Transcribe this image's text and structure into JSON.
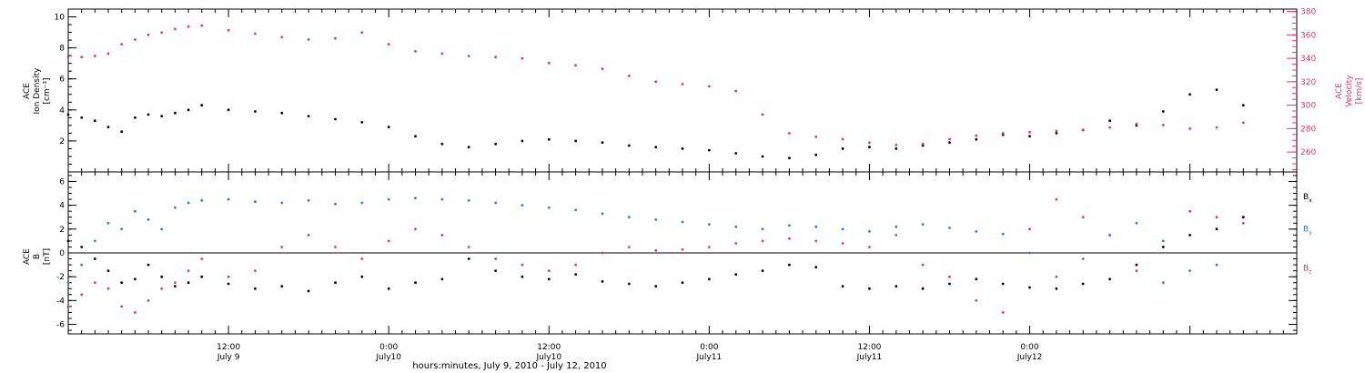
{
  "colors": {
    "axis": "#000000",
    "black": "#000000",
    "pink": "#e8336b",
    "blue": "#1e7fe8"
  },
  "chart_data": [
    {
      "type": "scatter",
      "panel": "top",
      "ylabel_lines": [
        "ACE",
        "Ion Density",
        "[cm⁻³]"
      ],
      "ylim": [
        0,
        10.5
      ],
      "yticks": [
        2,
        4,
        6,
        8,
        10
      ],
      "y2label_lines": [
        "ACE",
        "Velocity",
        "[km/s]"
      ],
      "y2lim": [
        243,
        382
      ],
      "y2ticks": [
        260,
        280,
        300,
        320,
        340,
        360,
        380
      ],
      "y2_color": "#e8336b",
      "series": [
        {
          "role": "Ion Density",
          "axis": "left",
          "color": "#000000",
          "x": [
            0,
            1,
            2,
            3,
            4,
            5,
            6,
            7,
            8,
            9,
            10,
            12,
            14,
            16,
            18,
            20,
            22,
            24,
            26,
            28,
            30,
            32,
            34,
            36,
            38,
            40,
            42,
            44,
            46,
            48,
            50,
            52,
            54,
            56,
            58,
            60,
            62,
            64,
            66,
            68,
            70,
            72,
            74,
            76,
            78,
            80,
            82,
            84,
            86,
            88
          ],
          "y": [
            3.7,
            3.5,
            3.3,
            2.9,
            2.6,
            3.5,
            3.7,
            3.6,
            3.8,
            4.0,
            4.3,
            4.0,
            3.9,
            3.8,
            3.6,
            3.4,
            3.2,
            2.9,
            2.3,
            1.8,
            1.6,
            1.8,
            2.0,
            2.1,
            2.0,
            1.9,
            1.7,
            1.6,
            1.5,
            1.4,
            1.2,
            1.0,
            0.9,
            1.1,
            1.5,
            1.6,
            1.5,
            1.7,
            1.9,
            2.1,
            2.4,
            2.3,
            2.5,
            2.7,
            3.3,
            3.0,
            3.9,
            5.0,
            5.3,
            4.3
          ]
        },
        {
          "role": "Velocity",
          "axis": "right",
          "color": "#e8336b",
          "x": [
            0,
            1,
            2,
            3,
            4,
            5,
            6,
            7,
            8,
            9,
            10,
            12,
            14,
            16,
            18,
            20,
            22,
            24,
            26,
            28,
            30,
            32,
            34,
            36,
            38,
            40,
            42,
            44,
            46,
            48,
            50,
            52,
            54,
            56,
            58,
            60,
            62,
            64,
            66,
            68,
            70,
            72,
            74,
            76,
            78,
            80,
            82,
            84,
            86,
            88
          ],
          "y": [
            341,
            341,
            342,
            344,
            352,
            356,
            360,
            362,
            365,
            367,
            368,
            364,
            361,
            358,
            356,
            357,
            362,
            352,
            346,
            344,
            342,
            341,
            340,
            336,
            334,
            331,
            325,
            320,
            318,
            316,
            312,
            292,
            276,
            273,
            271,
            268,
            266,
            267,
            271,
            274,
            276,
            277,
            278,
            279,
            281,
            284,
            283,
            280,
            281,
            285
          ]
        }
      ]
    },
    {
      "type": "scatter",
      "panel": "bottom",
      "ylabel_lines": [
        "ACE",
        "B",
        "[nT]"
      ],
      "ylim": [
        -6.8,
        6.8
      ],
      "yticks": [
        -6,
        -4,
        -2,
        0,
        2,
        4,
        6
      ],
      "zero_line": true,
      "xlim": [
        0,
        92
      ],
      "xticks": [
        {
          "x": 12,
          "line1": "12:00",
          "line2": "July  9"
        },
        {
          "x": 24,
          "line1": "0:00",
          "line2": "July10"
        },
        {
          "x": 36,
          "line1": "12:00",
          "line2": "July10"
        },
        {
          "x": 48,
          "line1": "0:00",
          "line2": "July11"
        },
        {
          "x": 60,
          "line1": "12:00",
          "line2": "July11"
        },
        {
          "x": 72,
          "line1": "0:00",
          "line2": "July12"
        }
      ],
      "xlabel": "hours:minutes, July  9, 2010 - July 12, 2010",
      "legend": [
        {
          "base": "B",
          "sub": "x",
          "color": "#000000"
        },
        {
          "base": "B",
          "sub": "y",
          "color": "#1e7fe8"
        },
        {
          "base": "B",
          "sub": "z",
          "color": "#e8336b"
        }
      ],
      "series": [
        {
          "role": "Bx",
          "color": "#000000",
          "x": [
            0,
            1,
            2,
            3,
            4,
            5,
            6,
            7,
            8,
            9,
            10,
            12,
            14,
            16,
            18,
            20,
            22,
            24,
            26,
            28,
            30,
            32,
            34,
            36,
            38,
            40,
            42,
            44,
            46,
            48,
            50,
            52,
            54,
            56,
            58,
            60,
            62,
            64,
            66,
            68,
            70,
            72,
            74,
            76,
            78,
            80,
            82,
            84,
            86,
            88
          ],
          "y": [
            1.0,
            0.5,
            -0.5,
            -1.5,
            -2.5,
            -2.2,
            -1.0,
            -2.0,
            -2.8,
            -2.5,
            -2.0,
            -2.6,
            -3.0,
            -2.8,
            -3.2,
            -2.5,
            -2.0,
            -3.0,
            -2.5,
            -2.2,
            -0.5,
            -1.5,
            -2.0,
            -2.2,
            -1.8,
            -2.4,
            -2.6,
            -2.8,
            -2.5,
            -2.2,
            -1.8,
            -1.5,
            -1.0,
            -1.2,
            -2.8,
            -3.0,
            -2.8,
            -3.0,
            -2.6,
            -2.2,
            -2.6,
            -2.9,
            -3.0,
            -2.6,
            -2.2,
            -1.0,
            0.5,
            1.5,
            2.0,
            3.0
          ]
        },
        {
          "role": "By",
          "color": "#1e7fe8",
          "x": [
            0,
            1,
            2,
            3,
            4,
            5,
            6,
            7,
            8,
            9,
            10,
            12,
            14,
            16,
            18,
            20,
            22,
            24,
            26,
            28,
            30,
            32,
            34,
            36,
            38,
            40,
            42,
            44,
            46,
            48,
            50,
            52,
            54,
            56,
            58,
            60,
            62,
            64,
            66,
            68,
            70,
            72,
            74,
            76,
            78,
            80,
            82,
            84,
            86,
            88
          ],
          "y": [
            -2.5,
            -1.0,
            1.0,
            2.5,
            2.0,
            3.5,
            2.8,
            2.0,
            3.8,
            4.2,
            4.4,
            4.5,
            4.3,
            4.2,
            4.4,
            4.1,
            4.2,
            4.5,
            4.6,
            4.5,
            4.4,
            4.2,
            4.0,
            3.8,
            3.6,
            3.3,
            3.0,
            2.8,
            2.6,
            2.4,
            2.2,
            2.0,
            2.3,
            2.2,
            2.0,
            1.8,
            2.2,
            2.4,
            2.1,
            1.8,
            1.6,
            0.0,
            -2.0,
            -0.5,
            1.5,
            2.5,
            1.0,
            -1.5,
            -1.0,
            3.0
          ]
        },
        {
          "role": "Bz",
          "color": "#e8336b",
          "x": [
            0,
            1,
            2,
            3,
            4,
            5,
            6,
            7,
            8,
            9,
            10,
            12,
            14,
            16,
            18,
            20,
            22,
            24,
            26,
            28,
            30,
            32,
            34,
            36,
            38,
            40,
            42,
            44,
            46,
            48,
            50,
            52,
            54,
            56,
            58,
            60,
            62,
            64,
            66,
            68,
            70,
            72,
            74,
            76,
            78,
            80,
            82,
            84,
            86,
            88
          ],
          "y": [
            -4.5,
            -3.5,
            -2.5,
            -3.0,
            -4.5,
            -5.0,
            -4.0,
            -3.0,
            -2.5,
            -1.5,
            -0.5,
            -2.0,
            -1.5,
            0.5,
            1.5,
            0.5,
            -0.5,
            1.0,
            2.0,
            1.5,
            0.5,
            -0.5,
            -1.0,
            -1.5,
            -1.0,
            0.0,
            0.5,
            0.2,
            0.3,
            0.5,
            0.8,
            1.0,
            1.2,
            1.0,
            0.8,
            0.5,
            1.5,
            -1.0,
            -2.0,
            -4.0,
            -5.0,
            2.0,
            4.5,
            3.0,
            1.5,
            -1.5,
            -2.5,
            3.5,
            3.0,
            2.5
          ]
        }
      ]
    }
  ]
}
